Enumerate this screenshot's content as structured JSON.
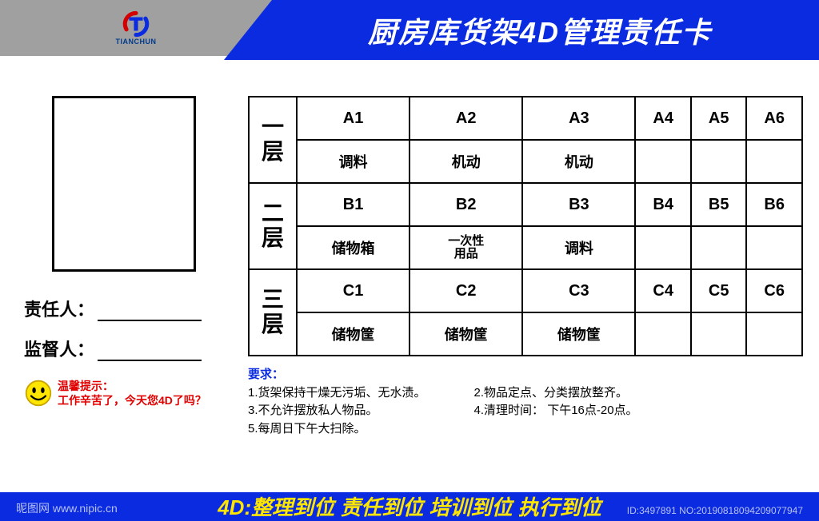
{
  "header": {
    "logo_icon_color_red": "#d40000",
    "logo_icon_color_blue": "#0a2be0",
    "logo_text": "TIANCHUN",
    "title": "厨房库货架4D管理责任卡",
    "gray_bg": "#a0a0a0",
    "blue_bg": "#0a2be0",
    "title_color": "#ffffff",
    "title_fontsize": 36
  },
  "left": {
    "photo_border": "#000000",
    "field1_label": "责任人：",
    "field2_label": "监督人：",
    "tip_label": "温馨提示：",
    "tip_text": "工作辛苦了，今天您4D了吗？",
    "tip_color": "#e00000",
    "smiley_face": "#ffe600",
    "smiley_stroke": "#c9a500"
  },
  "table": {
    "border_color": "#000000",
    "layers": [
      {
        "head": "一层",
        "codes": [
          "A1",
          "A2",
          "A3",
          "A4",
          "A5",
          "A6"
        ],
        "items": [
          "调料",
          "机动",
          "机动",
          "",
          "",
          ""
        ]
      },
      {
        "head": "二层",
        "codes": [
          "B1",
          "B2",
          "B3",
          "B4",
          "B5",
          "B6"
        ],
        "items": [
          "储物箱",
          "一次性用品",
          "调料",
          "",
          "",
          ""
        ]
      },
      {
        "head": "三层",
        "codes": [
          "C1",
          "C2",
          "C3",
          "C4",
          "C5",
          "C6"
        ],
        "items": [
          "储物筐",
          "储物筐",
          "储物筐",
          "",
          "",
          ""
        ]
      }
    ]
  },
  "requirements": {
    "title": "要求：",
    "title_color": "#0a2be0",
    "left_items": [
      "1.货架保持干燥无污垢、无水渍。",
      "3.不允许摆放私人物品。",
      "5.每周日下午大扫除。"
    ],
    "right_items": [
      "2.物品定点、分类摆放整齐。",
      "4.清理时间：  下午16点-20点。"
    ]
  },
  "footer": {
    "text": "4D:整理到位 责任到位 培训到位 执行到位",
    "bg": "#0a2be0",
    "fg": "#ffe600"
  },
  "watermark": {
    "left": "昵图网 www.nipic.cn",
    "right": "ID:3497891 NO:20190818094209077947"
  }
}
